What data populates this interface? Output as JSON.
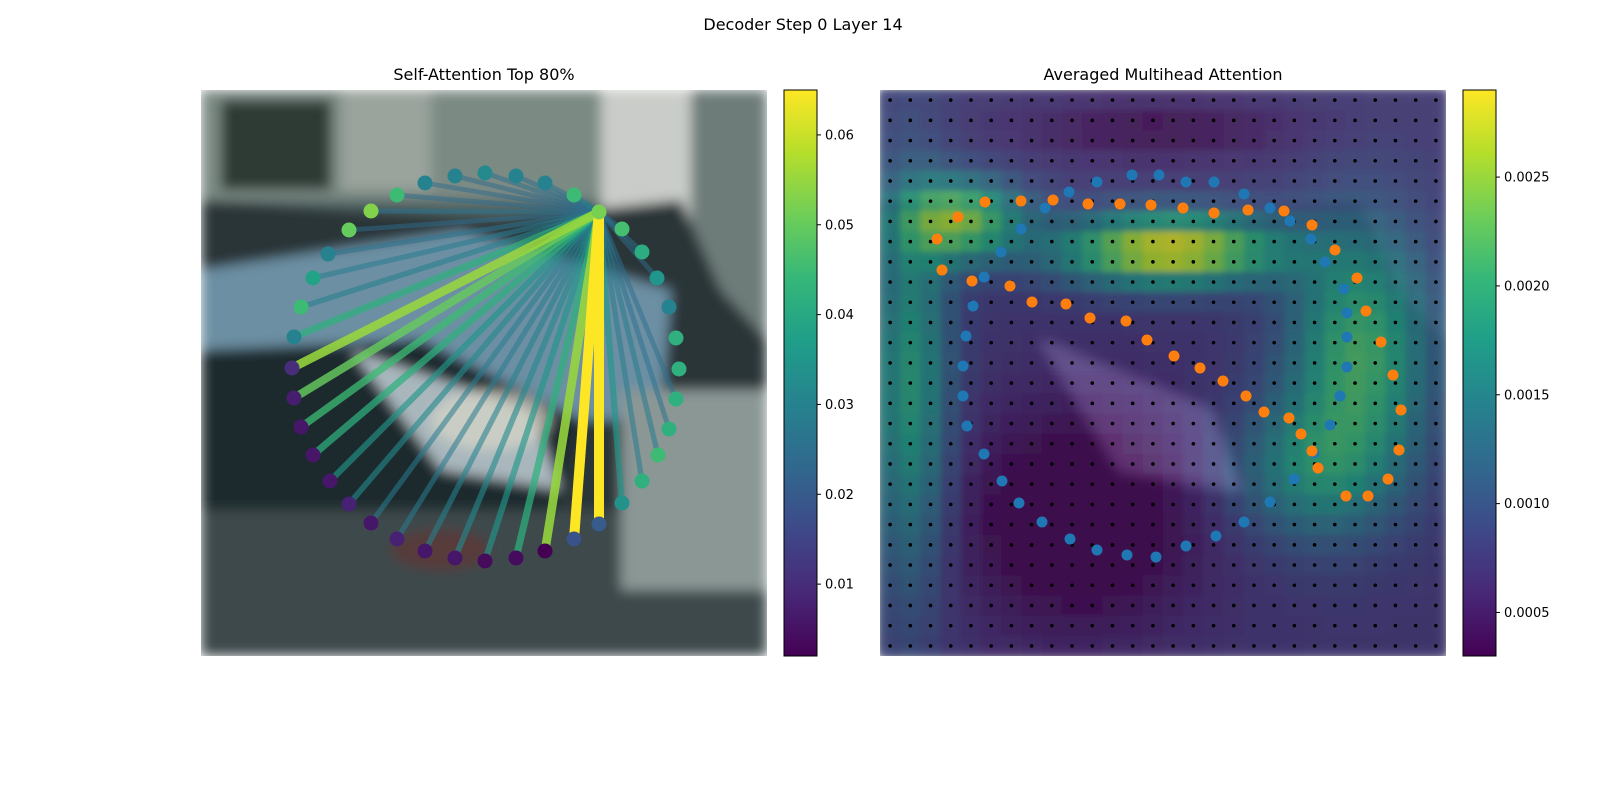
{
  "figure": {
    "suptitle": "Decoder Step 0 Layer 14"
  },
  "colors": {
    "viridis": [
      "#440154",
      "#482878",
      "#3e4989",
      "#31688e",
      "#26828e",
      "#1f9e89",
      "#35b779",
      "#6ece58",
      "#b5de2b",
      "#fde725"
    ],
    "blue_points": "#1f77b4",
    "orange_points": "#ff7f0e",
    "grid_dots": "#000000"
  },
  "chart_data": [
    {
      "type": "scatter",
      "title": "Self-Attention Top 80%",
      "description_of_background": "blurred photo of a car (image patch)",
      "colorbar": {
        "min": 0.002,
        "max": 0.065,
        "ticks": [
          0.01,
          0.02,
          0.03,
          0.04,
          0.05,
          0.06
        ],
        "tick_labels": [
          "0.01",
          "0.02",
          "0.03",
          "0.04",
          "0.05",
          "0.06"
        ]
      },
      "query_index": 0,
      "points": [
        {
          "x": 398,
          "y": 122,
          "v": 0.052
        },
        {
          "x": 421,
          "y": 139,
          "v": 0.046
        },
        {
          "x": 441,
          "y": 162,
          "v": 0.041
        },
        {
          "x": 456,
          "y": 188,
          "v": 0.035
        },
        {
          "x": 468,
          "y": 217,
          "v": 0.03
        },
        {
          "x": 475,
          "y": 248,
          "v": 0.042
        },
        {
          "x": 478,
          "y": 279,
          "v": 0.042
        },
        {
          "x": 475,
          "y": 309,
          "v": 0.042
        },
        {
          "x": 468,
          "y": 339,
          "v": 0.042
        },
        {
          "x": 457,
          "y": 365,
          "v": 0.045
        },
        {
          "x": 441,
          "y": 391,
          "v": 0.042
        },
        {
          "x": 421,
          "y": 413,
          "v": 0.034
        },
        {
          "x": 398,
          "y": 434,
          "v": 0.02
        },
        {
          "x": 373,
          "y": 449,
          "v": 0.018
        },
        {
          "x": 344,
          "y": 461,
          "v": 0.002
        },
        {
          "x": 315,
          "y": 468,
          "v": 0.004
        },
        {
          "x": 284,
          "y": 471,
          "v": 0.004
        },
        {
          "x": 254,
          "y": 468,
          "v": 0.006
        },
        {
          "x": 224,
          "y": 461,
          "v": 0.006
        },
        {
          "x": 196,
          "y": 449,
          "v": 0.008
        },
        {
          "x": 170,
          "y": 433,
          "v": 0.006
        },
        {
          "x": 148,
          "y": 414,
          "v": 0.008
        },
        {
          "x": 129,
          "y": 391,
          "v": 0.006
        },
        {
          "x": 112,
          "y": 365,
          "v": 0.006
        },
        {
          "x": 100,
          "y": 337,
          "v": 0.006
        },
        {
          "x": 93,
          "y": 308,
          "v": 0.007
        },
        {
          "x": 91,
          "y": 278,
          "v": 0.01
        },
        {
          "x": 93,
          "y": 247,
          "v": 0.03
        },
        {
          "x": 100,
          "y": 217,
          "v": 0.045
        },
        {
          "x": 112,
          "y": 188,
          "v": 0.038
        },
        {
          "x": 127,
          "y": 164,
          "v": 0.03
        },
        {
          "x": 148,
          "y": 140,
          "v": 0.05
        },
        {
          "x": 170,
          "y": 121,
          "v": 0.053
        },
        {
          "x": 196,
          "y": 105,
          "v": 0.045
        },
        {
          "x": 224,
          "y": 93,
          "v": 0.03
        },
        {
          "x": 254,
          "y": 86,
          "v": 0.03
        },
        {
          "x": 284,
          "y": 83,
          "v": 0.032
        },
        {
          "x": 315,
          "y": 86,
          "v": 0.03
        },
        {
          "x": 344,
          "y": 93,
          "v": 0.03
        },
        {
          "x": 373,
          "y": 105,
          "v": 0.045
        }
      ],
      "edges": [
        {
          "to": 12,
          "w": 0.065
        },
        {
          "to": 13,
          "w": 0.065
        },
        {
          "to": 14,
          "w": 0.055
        },
        {
          "to": 26,
          "w": 0.055
        },
        {
          "to": 25,
          "w": 0.05
        },
        {
          "to": 27,
          "w": 0.042
        },
        {
          "to": 24,
          "w": 0.045
        },
        {
          "to": 23,
          "w": 0.042
        },
        {
          "to": 15,
          "w": 0.042
        },
        {
          "to": 16,
          "w": 0.035
        },
        {
          "to": 22,
          "w": 0.035
        },
        {
          "to": 11,
          "w": 0.035
        },
        {
          "to": 17,
          "w": 0.032
        },
        {
          "to": 21,
          "w": 0.032
        },
        {
          "to": 28,
          "w": 0.03
        },
        {
          "to": 18,
          "w": 0.03
        },
        {
          "to": 20,
          "w": 0.028
        },
        {
          "to": 19,
          "w": 0.028
        },
        {
          "to": 10,
          "w": 0.028
        },
        {
          "to": 9,
          "w": 0.028
        },
        {
          "to": 8,
          "w": 0.026
        },
        {
          "to": 1,
          "w": 0.025
        },
        {
          "to": 2,
          "w": 0.025
        },
        {
          "to": 7,
          "w": 0.025
        },
        {
          "to": 3,
          "w": 0.024
        },
        {
          "to": 29,
          "w": 0.028
        },
        {
          "to": 30,
          "w": 0.026
        },
        {
          "to": 31,
          "w": 0.024
        },
        {
          "to": 32,
          "w": 0.026
        },
        {
          "to": 33,
          "w": 0.024
        },
        {
          "to": 34,
          "w": 0.024
        },
        {
          "to": 35,
          "w": 0.024
        },
        {
          "to": 36,
          "w": 0.025
        },
        {
          "to": 37,
          "w": 0.025
        },
        {
          "to": 38,
          "w": 0.025
        },
        {
          "to": 39,
          "w": 0.03
        }
      ]
    },
    {
      "type": "heatmap",
      "title": "Averaged Multihead Attention",
      "colorbar": {
        "min": 0.0003,
        "max": 0.0029,
        "ticks": [
          0.0005,
          0.001,
          0.0015,
          0.002,
          0.0025
        ],
        "tick_labels": [
          "0.0005",
          "0.0010",
          "0.0015",
          "0.0020",
          "0.0025"
        ]
      },
      "grid": {
        "cols": 28,
        "rows": 28
      },
      "blue_points": [
        [
          252,
          85
        ],
        [
          279,
          85
        ],
        [
          306,
          92
        ],
        [
          334,
          92
        ],
        [
          364,
          104
        ],
        [
          390,
          118
        ],
        [
          410,
          131
        ],
        [
          431,
          149
        ],
        [
          445,
          172
        ],
        [
          464,
          199
        ],
        [
          467,
          223
        ],
        [
          467,
          247
        ],
        [
          467,
          277
        ],
        [
          460,
          306
        ],
        [
          450,
          335
        ],
        [
          434,
          363
        ],
        [
          414,
          389
        ],
        [
          390,
          412
        ],
        [
          364,
          432
        ],
        [
          336,
          446
        ],
        [
          306,
          456
        ],
        [
          276,
          467
        ],
        [
          247,
          465
        ],
        [
          217,
          460
        ],
        [
          190,
          449
        ],
        [
          162,
          432
        ],
        [
          139,
          413
        ],
        [
          122,
          391
        ],
        [
          104,
          364
        ],
        [
          87,
          336
        ],
        [
          83,
          306
        ],
        [
          83,
          276
        ],
        [
          86,
          246
        ],
        [
          93,
          216
        ],
        [
          104,
          187
        ],
        [
          121,
          162
        ],
        [
          141,
          139
        ],
        [
          165,
          118
        ],
        [
          189,
          102
        ],
        [
          217,
          92
        ]
      ],
      "orange_points": [
        [
          57,
          149
        ],
        [
          78,
          127
        ],
        [
          105,
          112
        ],
        [
          141,
          111
        ],
        [
          173,
          110
        ],
        [
          208,
          114
        ],
        [
          240,
          114
        ],
        [
          271,
          115
        ],
        [
          303,
          118
        ],
        [
          334,
          123
        ],
        [
          368,
          120
        ],
        [
          404,
          121
        ],
        [
          432,
          135
        ],
        [
          455,
          160
        ],
        [
          477,
          188
        ],
        [
          486,
          221
        ],
        [
          501,
          252
        ],
        [
          513,
          285
        ],
        [
          521,
          320
        ],
        [
          519,
          360
        ],
        [
          508,
          389
        ],
        [
          488,
          406
        ],
        [
          466,
          406
        ],
        [
          438,
          378
        ],
        [
          432,
          361
        ],
        [
          421,
          344
        ],
        [
          409,
          328
        ],
        [
          384,
          322
        ],
        [
          366,
          306
        ],
        [
          343,
          291
        ],
        [
          320,
          278
        ],
        [
          294,
          266
        ],
        [
          267,
          250
        ],
        [
          246,
          231
        ],
        [
          210,
          228
        ],
        [
          186,
          214
        ],
        [
          152,
          212
        ],
        [
          130,
          196
        ],
        [
          92,
          191
        ],
        [
          62,
          180
        ]
      ]
    }
  ]
}
